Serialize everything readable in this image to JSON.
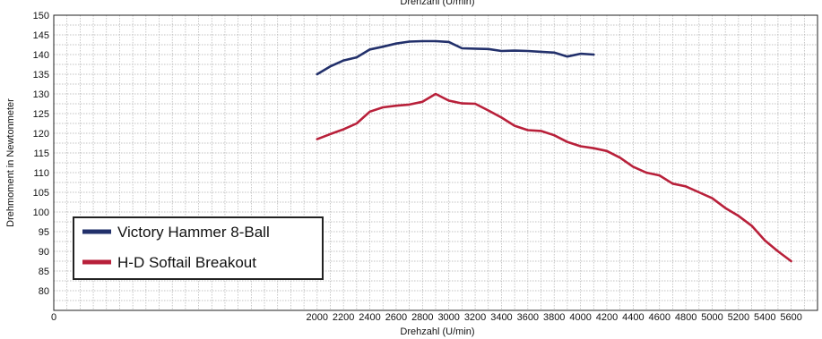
{
  "chart_data": {
    "type": "line",
    "xlabel": "Drehzahl (U/min)",
    "xlabel_top": "Drehzahl (U/min)",
    "ylabel": "Drehmoment in Newtonmeter",
    "xlim": [
      0,
      5800
    ],
    "ylim": [
      75,
      150
    ],
    "x_ticks": [
      0,
      2000,
      2200,
      2400,
      2600,
      2800,
      3000,
      3200,
      3400,
      3600,
      3800,
      4000,
      4200,
      4400,
      4600,
      4800,
      5000,
      5200,
      5400,
      5600
    ],
    "y_ticks": [
      80,
      85,
      90,
      95,
      100,
      105,
      110,
      115,
      120,
      125,
      130,
      135,
      140,
      145,
      150
    ],
    "grid": true,
    "legend_position": "bottom-left",
    "series": [
      {
        "name": "Victory Hammer 8-Ball",
        "color": "#22306b",
        "x": [
          2000,
          2100,
          2200,
          2300,
          2400,
          2500,
          2600,
          2700,
          2800,
          2900,
          3000,
          3100,
          3200,
          3300,
          3400,
          3500,
          3600,
          3700,
          3800,
          3900,
          4000,
          4100
        ],
        "values": [
          135,
          137,
          138.5,
          139.3,
          141.3,
          142,
          142.8,
          143.3,
          143.4,
          143.4,
          143.2,
          141.6,
          141.5,
          141.4,
          140.9,
          141,
          140.9,
          140.7,
          140.5,
          139.5,
          140.2,
          140
        ]
      },
      {
        "name": "H-D Softail Breakout",
        "color": "#b8203a",
        "x": [
          2000,
          2100,
          2200,
          2300,
          2400,
          2500,
          2600,
          2700,
          2800,
          2900,
          3000,
          3100,
          3200,
          3300,
          3400,
          3500,
          3600,
          3700,
          3800,
          3900,
          4000,
          4100,
          4200,
          4300,
          4400,
          4500,
          4600,
          4700,
          4800,
          4900,
          5000,
          5100,
          5200,
          5300,
          5400,
          5500,
          5600
        ],
        "values": [
          118.5,
          119.8,
          121,
          122.5,
          125.5,
          126.6,
          127,
          127.3,
          128,
          130,
          128.3,
          127.6,
          127.5,
          125.8,
          124,
          121.9,
          120.8,
          120.6,
          119.5,
          117.8,
          116.7,
          116.2,
          115.5,
          113.8,
          111.5,
          110,
          109.3,
          107.2,
          106.5,
          105,
          103.5,
          101,
          99,
          96.5,
          92.8,
          90,
          87.5
        ]
      }
    ]
  }
}
